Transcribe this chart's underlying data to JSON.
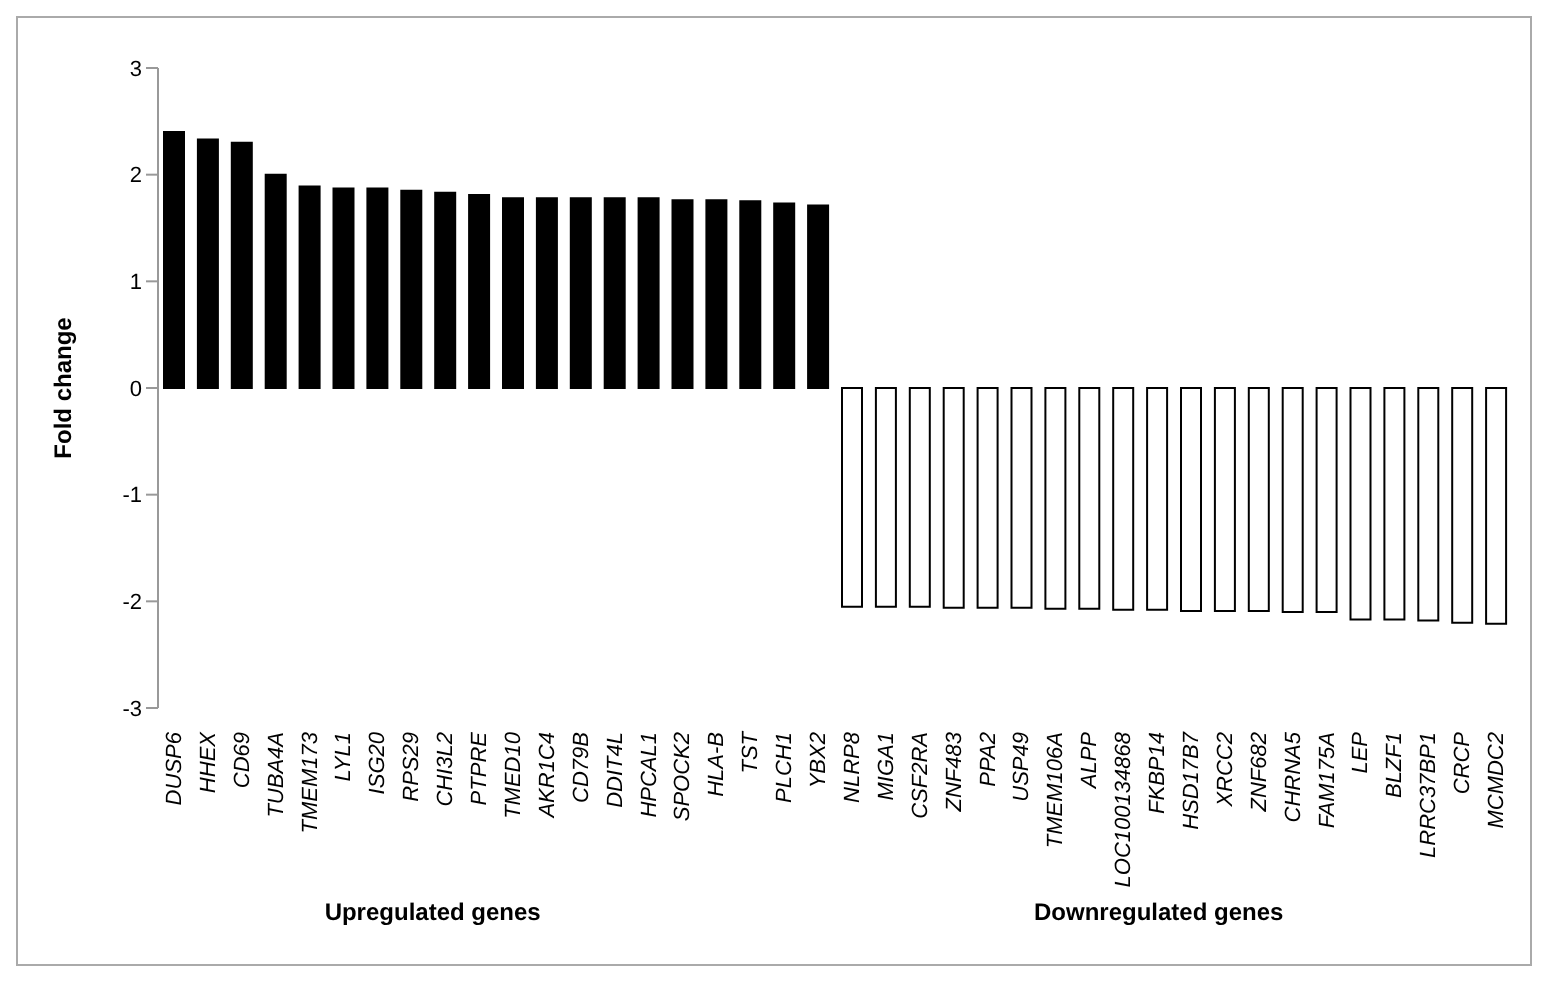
{
  "chart_data": {
    "type": "bar",
    "ylabel": "Fold change",
    "categories": [
      "DUSP6",
      "HHEX",
      "CD69",
      "TUBA4A",
      "TMEM173",
      "LYL1",
      "ISG20",
      "RPS29",
      "CHI3L2",
      "PTPRE",
      "TMED10",
      "AKR1C4",
      "CD79B",
      "DDIT4L",
      "HPCAL1",
      "SPOCK2",
      "HLA-B",
      "TST",
      "PLCH1",
      "YBX2",
      "NLRP8",
      "MIGA1",
      "CSF2RA",
      "ZNF483",
      "PPA2",
      "USP49",
      "TMEM106A",
      "ALPP",
      "LOC100134868",
      "FKBP14",
      "HSD17B7",
      "XRCC2",
      "ZNF682",
      "CHRNA5",
      "FAM175A",
      "LEP",
      "BLZF1",
      "LRRC37BP1",
      "CRCP",
      "MCMDC2"
    ],
    "values": [
      2.4,
      2.33,
      2.3,
      2.0,
      1.89,
      1.87,
      1.87,
      1.85,
      1.83,
      1.81,
      1.78,
      1.78,
      1.78,
      1.78,
      1.78,
      1.76,
      1.76,
      1.75,
      1.73,
      1.71,
      -2.05,
      -2.05,
      -2.05,
      -2.06,
      -2.06,
      -2.06,
      -2.07,
      -2.07,
      -2.08,
      -2.08,
      -2.09,
      -2.09,
      -2.09,
      -2.1,
      -2.1,
      -2.17,
      -2.17,
      -2.18,
      -2.2,
      -2.21
    ],
    "colors": [
      "#000000",
      "#000000",
      "#000000",
      "#000000",
      "#000000",
      "#000000",
      "#000000",
      "#000000",
      "#000000",
      "#000000",
      "#000000",
      "#000000",
      "#000000",
      "#000000",
      "#000000",
      "#000000",
      "#000000",
      "#000000",
      "#000000",
      "#000000",
      "#ffffff",
      "#ffffff",
      "#ffffff",
      "#ffffff",
      "#ffffff",
      "#ffffff",
      "#ffffff",
      "#ffffff",
      "#ffffff",
      "#ffffff",
      "#ffffff",
      "#ffffff",
      "#ffffff",
      "#ffffff",
      "#ffffff",
      "#ffffff",
      "#ffffff",
      "#ffffff",
      "#ffffff",
      "#ffffff"
    ],
    "ylim": [
      -3,
      3
    ],
    "yticks": [
      -3,
      -2,
      -1,
      0,
      1,
      2,
      3
    ],
    "grid": false,
    "legend": false,
    "annotations": [
      "Upregulated genes",
      "Downregulated genes"
    ]
  }
}
